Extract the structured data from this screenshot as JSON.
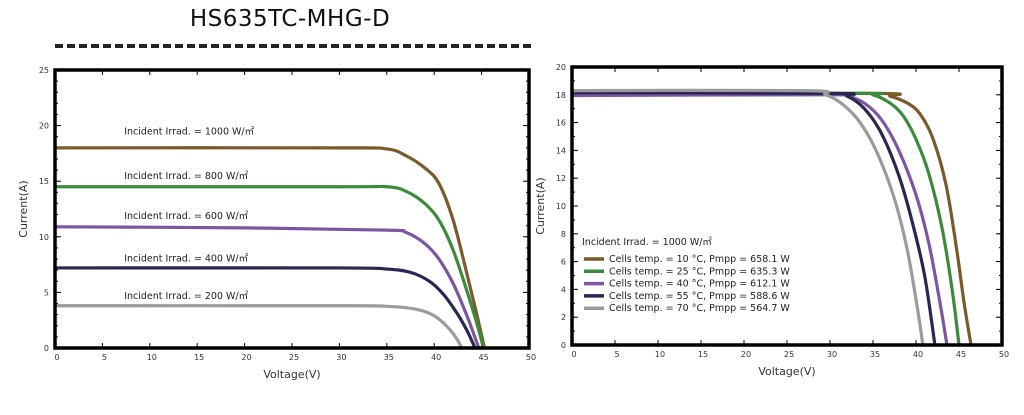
{
  "title": "HS635TC-MHG-D",
  "chart_data": [
    {
      "type": "line",
      "xlabel": "Voltage(V)",
      "ylabel": "Current(A)",
      "xlim": [
        0,
        50
      ],
      "ylim": [
        0,
        25
      ],
      "xticks": [
        "0",
        "5",
        "10",
        "15",
        "20",
        "25",
        "30",
        "35",
        "40",
        "45",
        "50"
      ],
      "yticks": [
        "0",
        "5",
        "10",
        "15",
        "20",
        "25"
      ],
      "grid": false,
      "series": [
        {
          "name": "Incident Irrad. = 1000 W/㎡",
          "color": "#7a5a2a",
          "points": [
            [
              0,
              18
            ],
            [
              30,
              18
            ],
            [
              35,
              17.9
            ],
            [
              37,
              17.3
            ],
            [
              39,
              16.2
            ],
            [
              40.5,
              14.8
            ],
            [
              42,
              11.5
            ],
            [
              43.5,
              6.5
            ],
            [
              44.5,
              3
            ],
            [
              45.3,
              0
            ]
          ]
        },
        {
          "name": "Incident Irrad. = 800 W/㎡",
          "color": "#3d8a3d",
          "points": [
            [
              0,
              14.5
            ],
            [
              30,
              14.5
            ],
            [
              35,
              14.5
            ],
            [
              37,
              14.1
            ],
            [
              39,
              13
            ],
            [
              40.5,
              11.5
            ],
            [
              42,
              8.8
            ],
            [
              43.5,
              5
            ],
            [
              44.5,
              2.2
            ],
            [
              45.2,
              0
            ]
          ]
        },
        {
          "name": "Incident Irrad. = 600 W/㎡",
          "color": "#7b57a3",
          "points": [
            [
              0,
              10.9
            ],
            [
              20,
              10.8
            ],
            [
              35,
              10.6
            ],
            [
              37,
              10.4
            ],
            [
              39,
              9.4
            ],
            [
              40.5,
              8
            ],
            [
              42,
              5.8
            ],
            [
              43.5,
              2.8
            ],
            [
              44.7,
              0
            ]
          ]
        },
        {
          "name": "Incident Irrad. = 400 W/㎡",
          "color": "#2b2552",
          "points": [
            [
              0,
              7.2
            ],
            [
              30,
              7.2
            ],
            [
              35,
              7.1
            ],
            [
              37.5,
              6.8
            ],
            [
              39.5,
              6
            ],
            [
              41,
              4.8
            ],
            [
              42.5,
              3
            ],
            [
              43.5,
              1.5
            ],
            [
              44.3,
              0
            ]
          ]
        },
        {
          "name": "Incident Irrad. = 200 W/㎡",
          "color": "#9b9b9b",
          "points": [
            [
              0,
              3.8
            ],
            [
              30,
              3.8
            ],
            [
              35,
              3.75
            ],
            [
              38,
              3.5
            ],
            [
              40,
              2.9
            ],
            [
              41.5,
              1.8
            ],
            [
              42.4,
              0.8
            ],
            [
              42.9,
              0
            ]
          ]
        }
      ]
    },
    {
      "type": "line",
      "xlabel": "Voltage(V)",
      "ylabel": "Current(A)",
      "xlim": [
        0,
        50
      ],
      "ylim": [
        0,
        20
      ],
      "xticks": [
        "0",
        "5",
        "10",
        "15",
        "20",
        "25",
        "30",
        "35",
        "40",
        "45",
        "50"
      ],
      "yticks": [
        "0",
        "2",
        "4",
        "6",
        "8",
        "10",
        "12",
        "14",
        "16",
        "18",
        "20"
      ],
      "grid": false,
      "legend_title": "Incident Irrad. = 1000 W/㎡",
      "legend_position": "bottom-left",
      "series": [
        {
          "name": "Cells temp. = 10 °C,  Pmpp = 658.1 W",
          "color": "#7a5a2a",
          "points": [
            [
              0,
              18.1
            ],
            [
              35,
              18.1
            ],
            [
              37,
              17.9
            ],
            [
              39,
              17.4
            ],
            [
              40.5,
              16.6
            ],
            [
              42,
              14.8
            ],
            [
              43.5,
              11.5
            ],
            [
              44.7,
              7
            ],
            [
              45.6,
              3
            ],
            [
              46.4,
              0
            ]
          ]
        },
        {
          "name": "Cells temp. = 25 °C,  Pmpp = 635.3 W",
          "color": "#3d8a3d",
          "points": [
            [
              0,
              18.1
            ],
            [
              33,
              18.1
            ],
            [
              35,
              18
            ],
            [
              37,
              17.4
            ],
            [
              38.5,
              16.5
            ],
            [
              40,
              14.8
            ],
            [
              41.5,
              12.3
            ],
            [
              43,
              8.5
            ],
            [
              44.2,
              4
            ],
            [
              45,
              0
            ]
          ]
        },
        {
          "name": "Cells temp. = 40 °C,  Pmpp = 612.1 W",
          "color": "#7b57a3",
          "points": [
            [
              0,
              17.95
            ],
            [
              30,
              18
            ],
            [
              32,
              17.9
            ],
            [
              34,
              17.4
            ],
            [
              36,
              16.2
            ],
            [
              38,
              14
            ],
            [
              40,
              10.8
            ],
            [
              41.5,
              7.3
            ],
            [
              42.8,
              3
            ],
            [
              43.6,
              0
            ]
          ]
        },
        {
          "name": "Cells temp. = 55 °C,  Pmpp = 588.6 W",
          "color": "#2b2552",
          "points": [
            [
              0,
              18.15
            ],
            [
              30,
              18.1
            ],
            [
              32,
              17.9
            ],
            [
              34,
              17
            ],
            [
              36,
              15.2
            ],
            [
              38,
              12.2
            ],
            [
              39.5,
              9
            ],
            [
              41,
              5
            ],
            [
              42.2,
              0
            ]
          ]
        },
        {
          "name": "Cells temp. = 70 °C,  Pmpp = 564.7 W",
          "color": "#9b9b9b",
          "points": [
            [
              0,
              18.3
            ],
            [
              27,
              18.3
            ],
            [
              29.5,
              18
            ],
            [
              31.5,
              17.3
            ],
            [
              33.5,
              16
            ],
            [
              35.5,
              13.8
            ],
            [
              37.5,
              10.5
            ],
            [
              39,
              6.8
            ],
            [
              40.2,
              2.5
            ],
            [
              40.8,
              0
            ]
          ]
        }
      ]
    }
  ]
}
